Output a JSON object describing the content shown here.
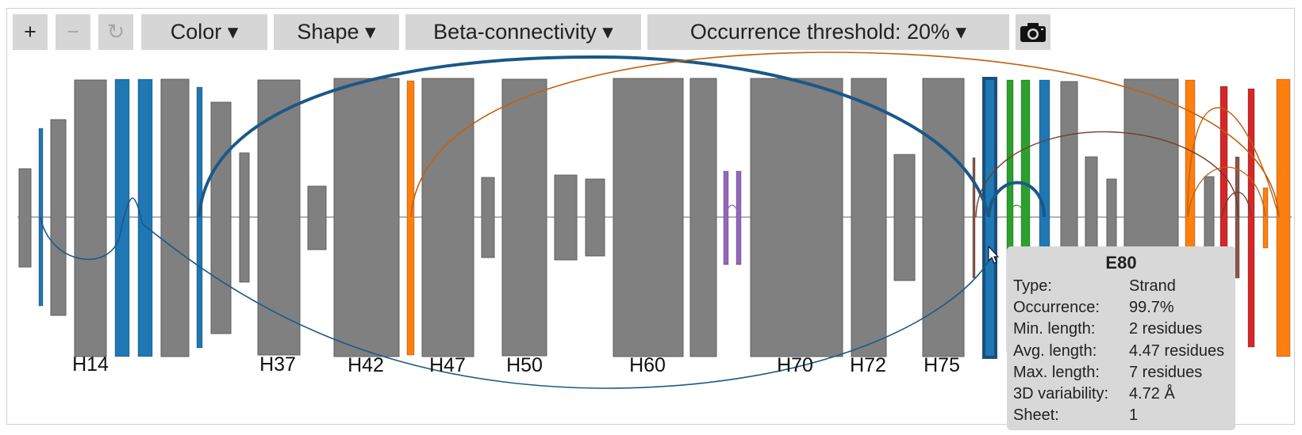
{
  "toolbar": {
    "zoom_in_label": "+",
    "zoom_out_label": "−",
    "reset_label": "↻",
    "color_label": "Color ▾",
    "shape_label": "Shape ▾",
    "beta_label": "Beta-connectivity ▾",
    "threshold_label": "Occurrence threshold: 20% ▾",
    "camera_icon": "camera-icon"
  },
  "colors": {
    "helix": "#808080",
    "strand_blue": "#1f77b4",
    "strand_orange": "#ff7f0e",
    "strand_green": "#2ca02c",
    "strand_red": "#d62728",
    "strand_purple": "#9467bd",
    "strand_brown": "#8c564b",
    "arc_blue": "#1b5887",
    "arc_orange": "#c2600e",
    "arc_brown": "#6b3d2e",
    "tooltip_bg": "#d8d8d8"
  },
  "diagram": {
    "labels": [
      "H14",
      "H37",
      "H42",
      "H47",
      "H50",
      "H60",
      "H70",
      "H72",
      "H75"
    ]
  },
  "tooltip": {
    "title": "E80",
    "rows": [
      {
        "key": "Type:",
        "value": "Strand"
      },
      {
        "key": "Occurrence:",
        "value": "99.7%"
      },
      {
        "key": "Min. length:",
        "value": "2 residues"
      },
      {
        "key": "Avg. length:",
        "value": "4.47 residues"
      },
      {
        "key": "Max. length:",
        "value": "7 residues"
      },
      {
        "key": "3D variability:",
        "value": "4.72 Å"
      },
      {
        "key": "Sheet:",
        "value": "1"
      }
    ]
  }
}
